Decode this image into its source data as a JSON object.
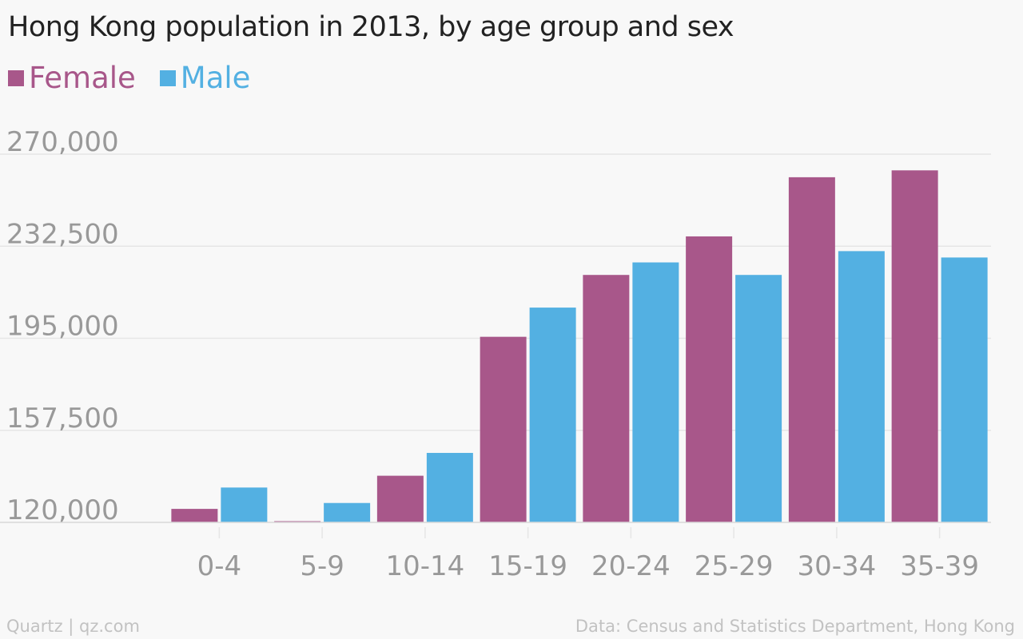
{
  "colors": {
    "female": "#a8578a",
    "male": "#53b0e2",
    "grid": "#e6e6e6",
    "tick": "#999999"
  },
  "footer": {
    "source_left": "Quartz | qz.com",
    "source_right": "Data: Census and Statistics Department, Hong Kong"
  },
  "chart_data": {
    "type": "bar",
    "title": "Hong Kong population in 2013, by age group and sex",
    "categories": [
      "0-4",
      "5-9",
      "10-14",
      "15-19",
      "20-24",
      "25-29",
      "30-34",
      "35-39"
    ],
    "series": [
      {
        "name": "Female",
        "values": [
          125500,
          120200,
          139000,
          195600,
          220800,
          236500,
          260600,
          263400
        ]
      },
      {
        "name": "Male",
        "values": [
          134200,
          127900,
          148300,
          207500,
          225900,
          220800,
          230500,
          227900
        ]
      }
    ],
    "yticks": [
      "270,000",
      "232,500",
      "195,000",
      "157,500",
      "120,000"
    ],
    "ytick_values": [
      270000,
      232500,
      195000,
      157500,
      120000
    ],
    "ylim": [
      120000,
      270000
    ],
    "grid": true,
    "legend": "top-left",
    "xlabel": "",
    "ylabel": ""
  }
}
